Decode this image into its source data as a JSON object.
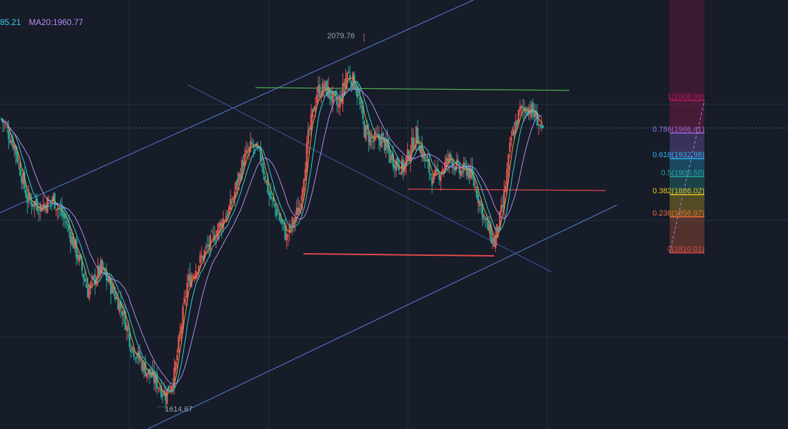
{
  "legend": {
    "ma_fast_text": "85.21",
    "ma20_text": "MA20:1960.77"
  },
  "colors": {
    "background": "#161c28",
    "grid": "#263040",
    "up": "#e05555",
    "down": "#26a69a",
    "ma5": "#e8a33d",
    "ma10": "#3ec9e6",
    "ma20": "#b58cf0",
    "channel": "#5b7fd6",
    "resistance": "#4caf50",
    "support": "#e04a4a"
  },
  "chart_data": {
    "type": "candlestick",
    "ylim": [
      1580,
      2140
    ],
    "high_label": "2079.76",
    "low_label": "1614.67",
    "series": [
      {
        "name": "MA20",
        "note": "purple moving average"
      }
    ],
    "price_path": [
      [
        0,
        1985
      ],
      [
        3,
        1950
      ],
      [
        6,
        1880
      ],
      [
        9,
        1870
      ],
      [
        12,
        1880
      ],
      [
        15,
        1850
      ],
      [
        18,
        1800
      ],
      [
        20,
        1760
      ],
      [
        23,
        1790
      ],
      [
        25,
        1770
      ],
      [
        28,
        1735
      ],
      [
        30,
        1690
      ],
      [
        33,
        1660
      ],
      [
        36,
        1640
      ],
      [
        38,
        1625
      ],
      [
        40,
        1650
      ],
      [
        43,
        1770
      ],
      [
        46,
        1800
      ],
      [
        48,
        1820
      ],
      [
        50,
        1840
      ],
      [
        53,
        1870
      ],
      [
        56,
        1930
      ],
      [
        58,
        1950
      ],
      [
        60,
        1935
      ],
      [
        62,
        1885
      ],
      [
        64,
        1860
      ],
      [
        66,
        1830
      ],
      [
        69,
        1870
      ],
      [
        71,
        1960
      ],
      [
        73,
        2020
      ],
      [
        75,
        2025
      ],
      [
        78,
        2000
      ],
      [
        80,
        2045
      ],
      [
        82,
        2030
      ],
      [
        84,
        1970
      ],
      [
        86,
        1955
      ],
      [
        88,
        1960
      ],
      [
        90,
        1935
      ],
      [
        93,
        1920
      ],
      [
        96,
        1965
      ],
      [
        98,
        1930
      ],
      [
        100,
        1905
      ],
      [
        102,
        1920
      ],
      [
        104,
        1935
      ],
      [
        106,
        1915
      ],
      [
        108,
        1920
      ],
      [
        110,
        1890
      ],
      [
        112,
        1850
      ],
      [
        114,
        1822
      ],
      [
        116,
        1870
      ],
      [
        118,
        1960
      ],
      [
        120,
        1995
      ],
      [
        122,
        2000
      ],
      [
        124,
        1985
      ],
      [
        125,
        1970
      ]
    ],
    "fibonacci": {
      "levels": [
        {
          "ratio": "1",
          "price": "2008.99",
          "color": "#c2185b"
        },
        {
          "ratio": "0.786",
          "price": "1966.41",
          "color": "#9c6ade"
        },
        {
          "ratio": "0.618",
          "price": "1932.98",
          "color": "#29b6f6"
        },
        {
          "ratio": "0.5",
          "price": "1909.50",
          "color": "#26a69a"
        },
        {
          "ratio": "0.382",
          "price": "1886.02",
          "color": "#f0c419"
        },
        {
          "ratio": "0.236",
          "price": "1856.97",
          "color": "#ef6c3a"
        },
        {
          "ratio": "0",
          "price": "1810.01",
          "color": "#e04a4a"
        }
      ]
    }
  }
}
